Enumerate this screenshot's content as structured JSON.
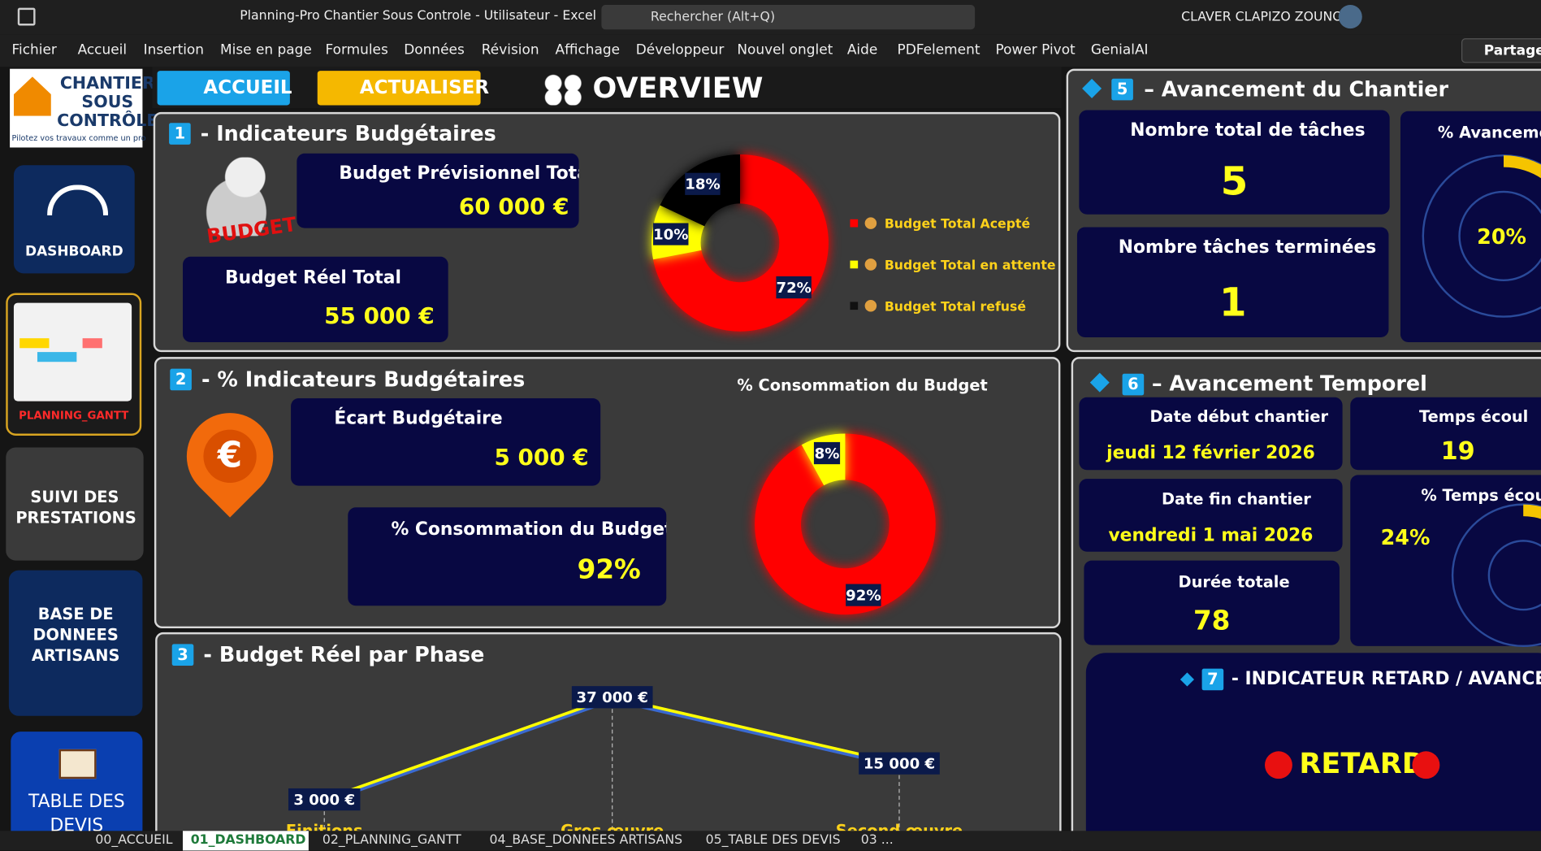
{
  "window": {
    "title": "Planning-Pro Chantier Sous Controle - Utilisateur  -  Excel",
    "search": "Rechercher (Alt+Q)",
    "user": "CLAVER CLAPIZO ZOUNON"
  },
  "ribbon": {
    "tabs": [
      "Fichier",
      "Accueil",
      "Insertion",
      "Mise en page",
      "Formules",
      "Données",
      "Révision",
      "Affichage",
      "Développeur",
      "Nouvel onglet",
      "Aide",
      "PDFelement",
      "Power Pivot",
      "GenialAI"
    ],
    "share": "Partager"
  },
  "sidebar": {
    "logo": [
      "CHANTIER",
      "SOUS",
      "CONTRÔLE"
    ],
    "tagline": "Pilotez vos travaux comme un pro",
    "buttons": [
      "DASHBOARD",
      "PLANNING_GANTT",
      "SUIVI DES PRESTATIONS",
      "BASE DE DONNEES ARTISANS",
      "TABLE DES DEVIS"
    ]
  },
  "header": {
    "home": "ACCUEIL",
    "refresh": "ACTUALISER",
    "title": "OVERVIEW"
  },
  "section1": {
    "number": "1",
    "title": "- Indicateurs Budgétaires",
    "cards": [
      {
        "label": "Budget Prévisionnel Total",
        "value": "60 000 €"
      },
      {
        "label": "Budget Réel Total",
        "value": "55 000 €"
      }
    ],
    "chart": {
      "type": "pie",
      "categories": [
        "Budget Total Acepté",
        "Budget  Total en attente",
        "Budget Total refusé"
      ],
      "values": [
        72,
        10,
        18
      ],
      "value_labels": [
        "72%",
        "10%",
        "18%"
      ],
      "colors": [
        "#ff0000",
        "#ffff00",
        "#000000"
      ]
    }
  },
  "section2": {
    "number": "2",
    "title": "- % Indicateurs Budgétaires",
    "cards": [
      {
        "label": "Écart Budgétaire",
        "value": "5 000 €"
      },
      {
        "label": "% Consommation du Budget",
        "value": "92%"
      }
    ],
    "chart": {
      "type": "pie",
      "title": "% Consommation du Budget",
      "values": [
        92,
        8
      ],
      "value_labels": [
        "92%",
        "8%"
      ],
      "colors": [
        "#ff0000",
        "#ffff00"
      ]
    }
  },
  "section3": {
    "number": "3",
    "title": "- Budget Réel par Phase",
    "chart": {
      "type": "line",
      "categories": [
        "Finitions",
        "Gros œuvre",
        "Second œuvre"
      ],
      "values": [
        3000,
        37000,
        15000
      ],
      "value_labels": [
        "3 000 €",
        "37 000 €",
        "15 000 €"
      ],
      "color": "#ffff00"
    }
  },
  "section5": {
    "number": "5",
    "title": "– Avancement du Chantier",
    "cards": [
      {
        "label": "Nombre total de tâches",
        "value": "5"
      },
      {
        "label": "Nombre tâches terminées",
        "value": "1"
      }
    ],
    "progress": {
      "type": "gauge",
      "label": "% Avancemen",
      "values": [
        20
      ],
      "value_labels": [
        "20%"
      ],
      "color": "#f5c400"
    }
  },
  "section6": {
    "number": "6",
    "title": "– Avancement Temporel",
    "cards": [
      {
        "label": "Date début chantier",
        "value": "jeudi 12 février 2026"
      },
      {
        "label": "Temps écoul",
        "value": "19"
      },
      {
        "label": "Date fin chantier",
        "value": "vendredi 1 mai 2026"
      },
      {
        "label": "Durée totale",
        "value": "78"
      }
    ],
    "progress": {
      "type": "gauge",
      "label": "% Temps écou",
      "values": [
        24
      ],
      "value_labels": [
        "24%"
      ],
      "color": "#f5c400"
    }
  },
  "section7": {
    "number": "7",
    "title": "- INDICATEUR RETARD / AVANCE",
    "status": "RETARD"
  },
  "sheets": [
    "00_ACCUEIL",
    "01_DASHBOARD",
    "02_PLANNING_GANTT",
    "04_BASE_DONNEES ARTISANS",
    "05_TABLE DES DEVIS",
    "03 ..."
  ]
}
